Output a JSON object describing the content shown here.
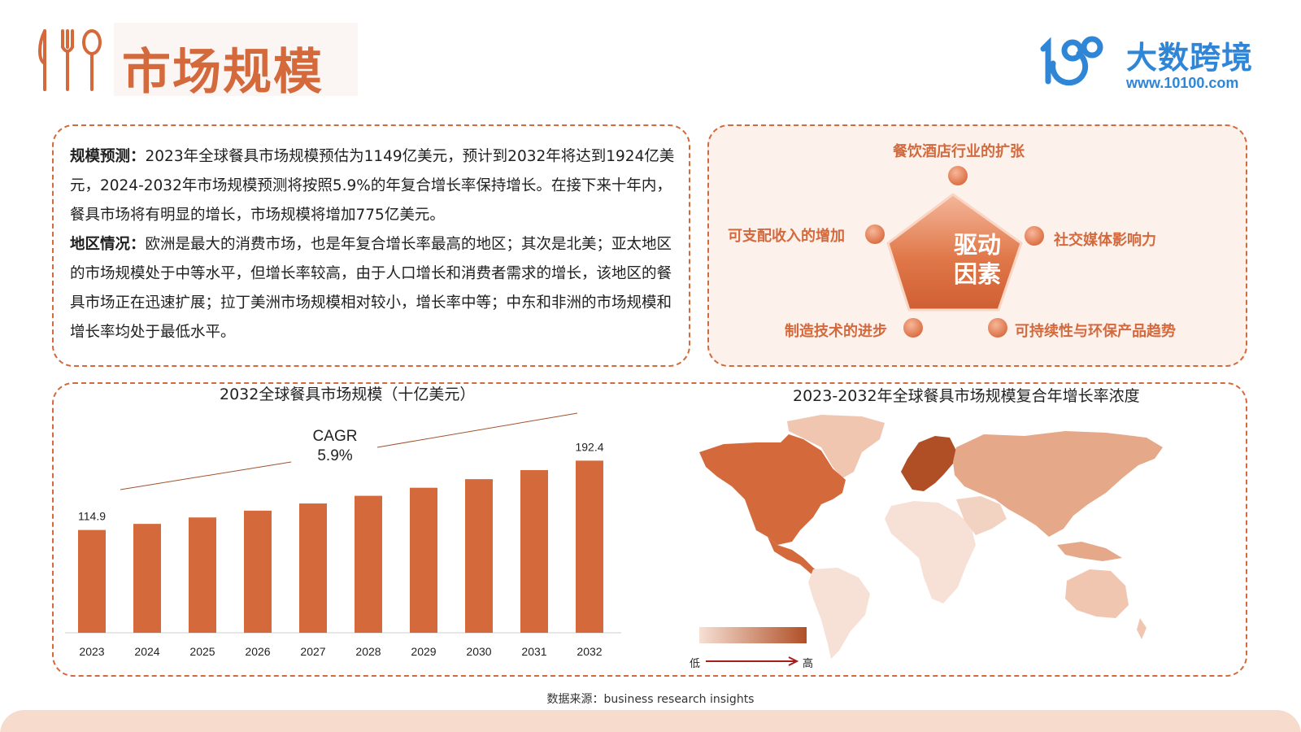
{
  "header": {
    "title": "市场规模",
    "logo_name": "大数跨境",
    "logo_url": "www.10100.com",
    "accent_color": "#d4693c",
    "logo_color": "#2f86d6"
  },
  "summary": {
    "scale_label": "规模预测：",
    "scale_text": "2023年全球餐具市场规模预估为1149亿美元，预计到2032年将达到1924亿美元，2024-2032年市场规模预测将按照5.9%的年复合增长率保持增长。在接下来十年内，餐具市场将有明显的增长，市场规模将增加775亿美元。",
    "region_label": "地区情况：",
    "region_text": "欧洲是最大的消费市场，也是年复合增长率最高的地区；其次是北美；亚太地区的市场规模处于中等水平，但增长率较高，由于人口增长和消费者需求的增长，该地区的餐具市场正在迅速扩展；拉丁美洲市场规模相对较小，增长率中等；中东和非洲的市场规模和增长率均处于最低水平。"
  },
  "drivers": {
    "center_line1": "驱动",
    "center_line2": "因素",
    "items": [
      {
        "label": "餐饮酒店行业的扩张"
      },
      {
        "label": "社交媒体影响力"
      },
      {
        "label": "可持续性与环保产品趋势"
      },
      {
        "label": "制造技术的进步"
      },
      {
        "label": "可支配收入的增加"
      }
    ]
  },
  "chart_data": [
    {
      "type": "bar",
      "title": "2032全球餐具市场规模（十亿美元）",
      "categories": [
        "2023",
        "2024",
        "2025",
        "2026",
        "2027",
        "2028",
        "2029",
        "2030",
        "2031",
        "2032"
      ],
      "values": [
        114.9,
        121.7,
        128.9,
        136.5,
        144.5,
        153.1,
        162.1,
        171.7,
        181.8,
        192.4
      ],
      "data_labels": {
        "2023": "114.9",
        "2032": "192.4"
      },
      "annotation": {
        "line1": "CAGR",
        "line2": "5.9%"
      },
      "bar_color": "#d4693c",
      "grid": false
    },
    {
      "type": "map",
      "title": "2023-2032年全球餐具市场规模复合年增长率浓度",
      "regions": [
        {
          "name": "Europe",
          "level": 5,
          "color": "#b04f26"
        },
        {
          "name": "North America",
          "level": 4,
          "color": "#d4693c"
        },
        {
          "name": "Asia-Pacific",
          "level": 3,
          "color": "#e5a98a"
        },
        {
          "name": "Latin America",
          "level": 2,
          "color": "#f2d2c1"
        },
        {
          "name": "Middle East & Africa",
          "level": 1,
          "color": "#f7e1d6"
        }
      ],
      "legend": {
        "low": "低",
        "high": "高"
      }
    }
  ],
  "footer": {
    "source": "数据来源：business research insights"
  }
}
